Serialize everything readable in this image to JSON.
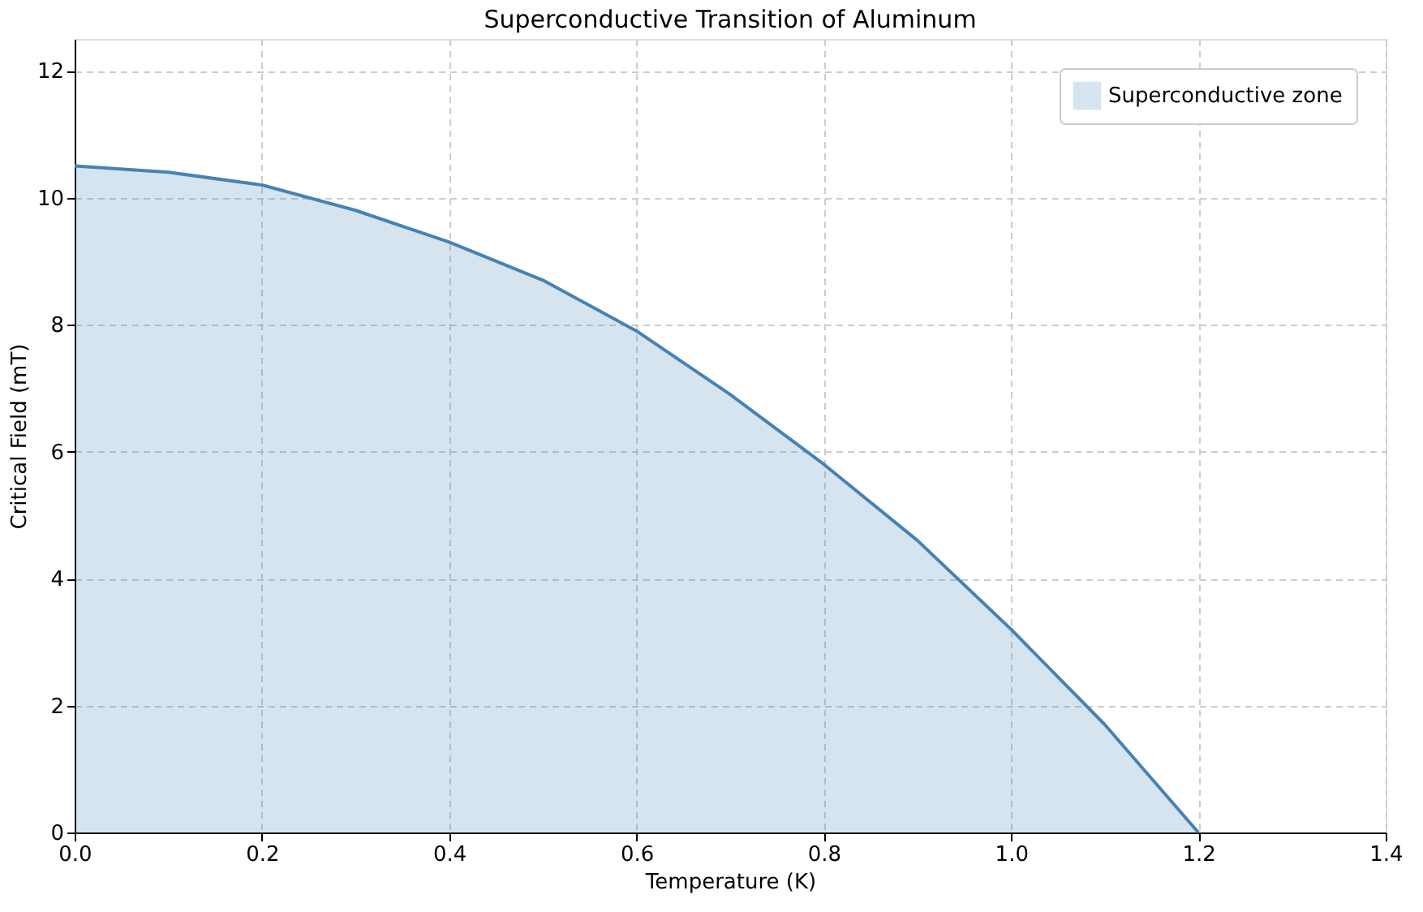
{
  "chart_data": {
    "type": "area",
    "title": "Superconductive Transition of Aluminum",
    "xlabel": "Temperature (K)",
    "ylabel": "Critical Field (mT)",
    "x": [
      0,
      0.1,
      0.2,
      0.3,
      0.4,
      0.5,
      0.6,
      0.7,
      0.8,
      0.9,
      1.0,
      1.1,
      1.2
    ],
    "series": [
      {
        "type": "area",
        "name": "Superconductive zone",
        "color": "#4682b4",
        "values": [
          10.5,
          10.4,
          10.2,
          9.8,
          9.3,
          8.7,
          7.9,
          6.9,
          5.8,
          4.6,
          3.2,
          1.7,
          0
        ]
      }
    ],
    "xlim": [
      0,
      1.4
    ],
    "ylim": [
      0,
      12.5
    ],
    "xticks": [
      {
        "value": 0,
        "label": "0.0"
      },
      0.2,
      0.4,
      0.6,
      0.8,
      {
        "value": 1.0,
        "label": "1.0"
      },
      1.2,
      1.4
    ],
    "yticks": [
      0,
      2,
      4,
      6,
      8,
      10,
      12
    ],
    "grid": true,
    "legend": "top right"
  }
}
